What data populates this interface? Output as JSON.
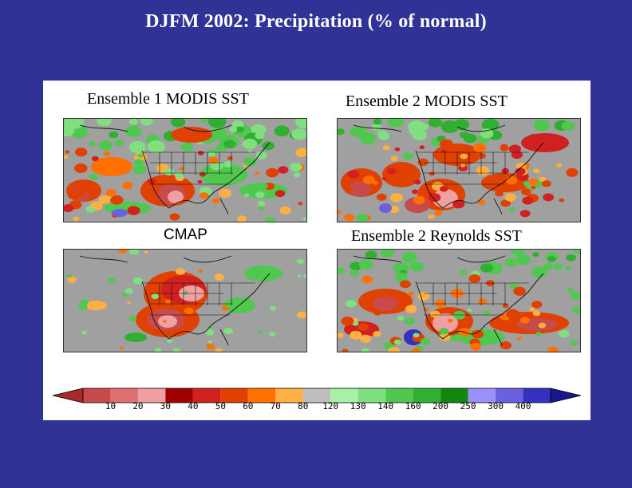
{
  "title": "DJFM 2002: Precipitation (% of normal)",
  "panels": [
    {
      "label": "Ensemble 1   MODIS SST"
    },
    {
      "label": "Ensemble 2   MODIS SST"
    },
    {
      "label": "CMAP"
    },
    {
      "label": "Ensemble 2   Reynolds SST"
    }
  ],
  "chart_data": {
    "type": "heatmap",
    "title": "DJFM 2002: Precipitation (% of normal)",
    "units": "% of normal",
    "colorbar": {
      "ticks": [
        "10",
        "20",
        "30",
        "40",
        "50",
        "60",
        "70",
        "80",
        "120",
        "130",
        "140",
        "160",
        "200",
        "250",
        "300",
        "400"
      ],
      "colors": [
        "#a52a2a",
        "#c84a4a",
        "#e07070",
        "#f0a0a0",
        "#a00000",
        "#d02020",
        "#e04000",
        "#ff7000",
        "#ffb040",
        "#bebebe",
        "#a8f0a8",
        "#80e080",
        "#50c850",
        "#30b030",
        "#108810",
        "#9a90f8",
        "#6a60e0",
        "#3430c0",
        "#1a1690"
      ],
      "extend": "both"
    },
    "maps": [
      {
        "name": "Ensemble 1   MODIS SST",
        "region": "North America"
      },
      {
        "name": "Ensemble 2   MODIS SST",
        "region": "North America"
      },
      {
        "name": "CMAP",
        "region": "North America"
      },
      {
        "name": "Ensemble 2   Reynolds SST",
        "region": "North America"
      }
    ]
  }
}
